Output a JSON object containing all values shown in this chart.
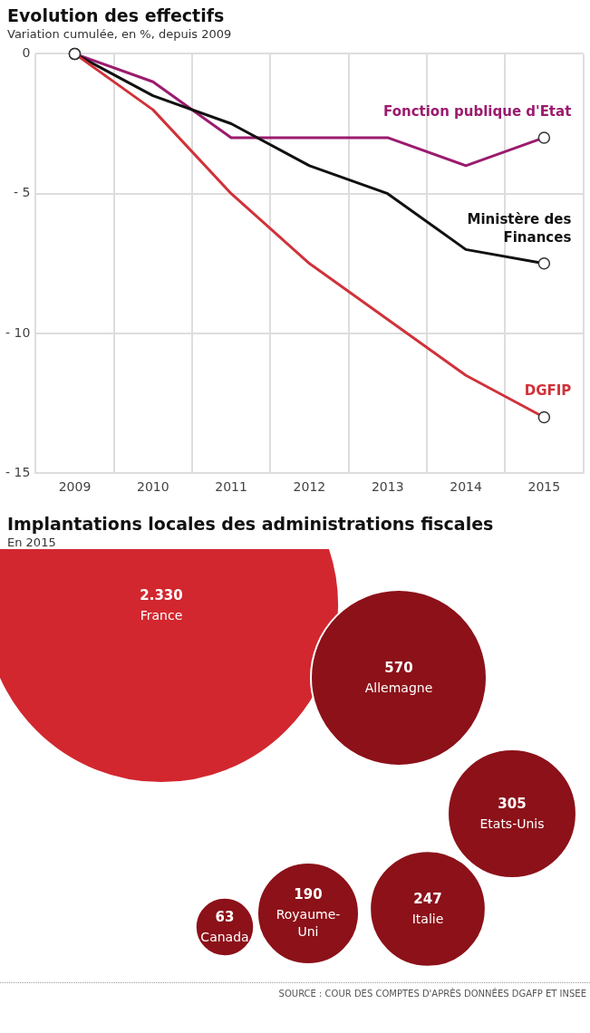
{
  "chart_data": [
    {
      "type": "line",
      "title": "Evolution des effectifs",
      "subtitle": "Variation cumulée, en %, depuis 2009",
      "categories": [
        "2009",
        "2010",
        "2011",
        "2012",
        "2013",
        "2014",
        "2015"
      ],
      "series": [
        {
          "name": "Fonction publique d'Etat",
          "color": "#9b1b6e",
          "values": [
            0,
            -1,
            -3,
            -3,
            -3,
            -4,
            -3
          ]
        },
        {
          "name": "Ministère des Finances",
          "color": "#111111",
          "values": [
            0,
            -1.5,
            -2.5,
            -4,
            -5,
            -7,
            -7.5
          ]
        },
        {
          "name": "DGFIP",
          "color": "#d0323a",
          "values": [
            0,
            -2,
            -5,
            -7.5,
            -9.5,
            -11.5,
            -13
          ]
        }
      ],
      "ylim": [
        -15,
        0
      ],
      "yticks": [
        0,
        {
          "value": -5,
          "label": "- 5"
        },
        {
          "value": -10,
          "label": "- 10"
        },
        {
          "value": -15,
          "label": "- 15"
        }
      ],
      "grid": true,
      "legend": false,
      "line_style": "solid"
    },
    {
      "type": "other",
      "title": "Implantations locales des administrations fiscales",
      "subtitle": "En 2015",
      "categories": [
        "France",
        "Allemagne",
        "Etats-Unis",
        "Italie",
        "Royaume-Uni",
        "Canada"
      ],
      "values": [
        2330,
        570,
        305,
        247,
        190,
        63
      ],
      "value_labels": [
        "2.330",
        "570",
        "305",
        "247",
        "190",
        "63"
      ],
      "colors": [
        "#d2272f",
        "#8c1119",
        "#8c1119",
        "#8c1119",
        "#8c1119",
        "#8c1119"
      ],
      "annotations": [
        "SOURCE : COUR DES COMPTES D'APRÈS DONNÉES DGAFP ET INSEE"
      ]
    }
  ]
}
